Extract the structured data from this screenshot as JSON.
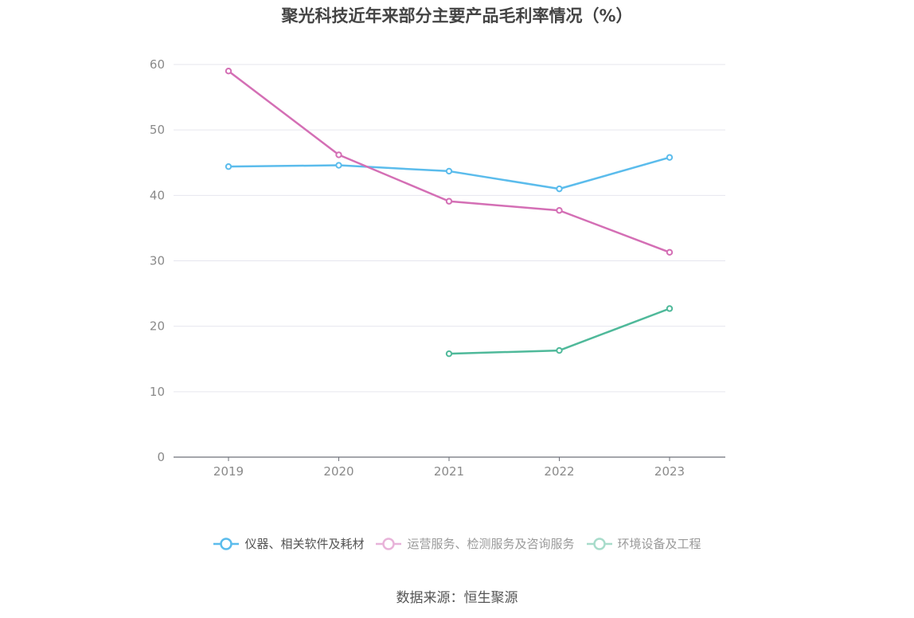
{
  "title": "聚光科技近年来部分主要产品毛利率情况（%）",
  "source": "数据来源：恒生聚源",
  "chart_data": {
    "type": "line",
    "title": "聚光科技近年来部分主要产品毛利率情况（%）",
    "x": [
      "2019",
      "2020",
      "2021",
      "2022",
      "2023"
    ],
    "ylim": [
      0,
      60
    ],
    "yticks": [
      0,
      10,
      20,
      30,
      40,
      50,
      60
    ],
    "grid": true,
    "legend_position": "bottom",
    "series": [
      {
        "name": "仪器、相关软件及耗材",
        "color": "#5bbcec",
        "values": [
          44.4,
          44.6,
          43.7,
          41.0,
          45.8
        ]
      },
      {
        "name": "运营服务、检测服务及咨询服务",
        "color": "#d46fb5",
        "values": [
          59.0,
          46.2,
          39.1,
          37.7,
          31.3
        ]
      },
      {
        "name": "环境设备及工程",
        "color": "#4fb99a",
        "values": [
          null,
          null,
          15.8,
          16.3,
          22.7
        ]
      }
    ]
  }
}
